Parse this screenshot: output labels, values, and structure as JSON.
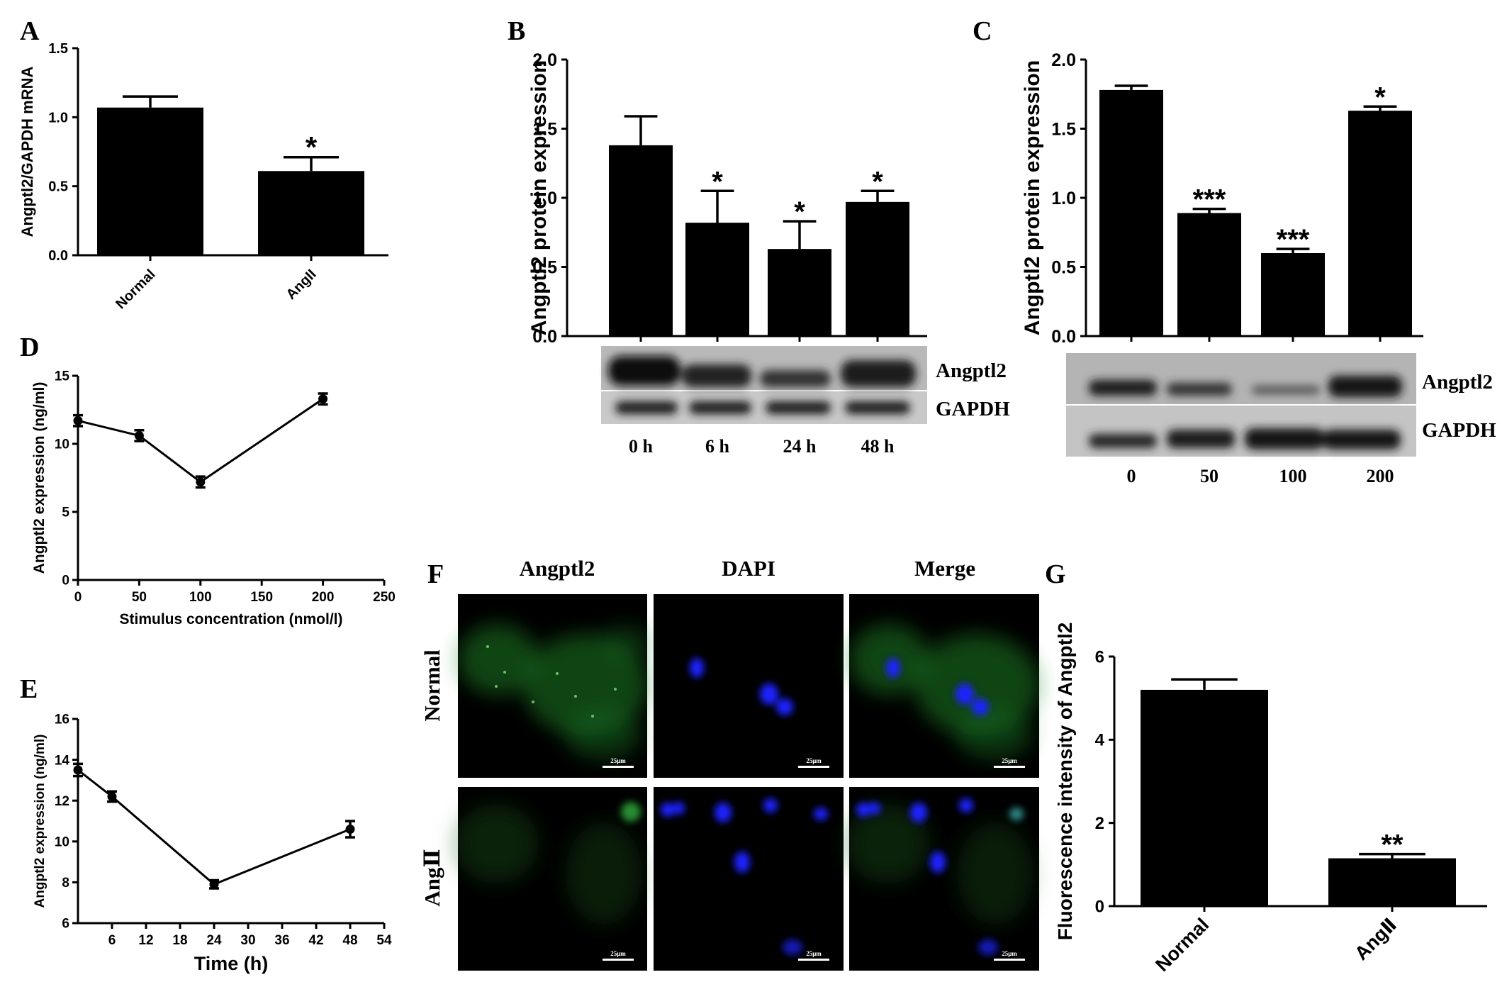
{
  "panel_letters": [
    "A",
    "B",
    "C",
    "D",
    "E",
    "F",
    "G"
  ],
  "colors": {
    "bar": "#000000",
    "green_channel": "#22a030",
    "blue_channel": "#1a22ff",
    "scale_bar": "#ffffff"
  },
  "chart_data": [
    {
      "panel": "A",
      "type": "bar",
      "categories": [
        "Normal",
        "AngII"
      ],
      "values": [
        1.07,
        0.61
      ],
      "errors": [
        0.08,
        0.1
      ],
      "significance": [
        "",
        "*"
      ],
      "ylabel": "Angptl2/GAPDH mRNA",
      "ylim": [
        0,
        1.5
      ],
      "yticks": [
        "0.0",
        "0.5",
        "1.0",
        "1.5"
      ]
    },
    {
      "panel": "B",
      "type": "bar",
      "categories": [
        "0 h",
        "6 h",
        "24 h",
        "48 h"
      ],
      "values": [
        1.38,
        0.82,
        0.63,
        0.97
      ],
      "errors": [
        0.21,
        0.23,
        0.2,
        0.08
      ],
      "significance": [
        "",
        "*",
        "*",
        "*"
      ],
      "ylabel": "Angptl2 protein expression",
      "ylim": [
        0,
        2.0
      ],
      "yticks": [
        "0.0",
        "0.5",
        "1.0",
        "1.5",
        "2.0"
      ],
      "blot_labels": [
        "Angptl2",
        "GAPDH"
      ]
    },
    {
      "panel": "C",
      "type": "bar",
      "categories": [
        "0",
        "50",
        "100",
        "200"
      ],
      "values": [
        1.78,
        0.89,
        0.6,
        1.63
      ],
      "errors": [
        0.03,
        0.03,
        0.03,
        0.03
      ],
      "significance": [
        "",
        "***",
        "***",
        "*"
      ],
      "ylabel": "Angptl2 protein expression",
      "ylim": [
        0,
        2.0
      ],
      "yticks": [
        "0.0",
        "0.5",
        "1.0",
        "1.5",
        "2.0"
      ],
      "blot_labels": [
        "Angptl2",
        "GAPDH"
      ]
    },
    {
      "panel": "D",
      "type": "line",
      "x": [
        0,
        50,
        100,
        200
      ],
      "y": [
        11.7,
        10.6,
        7.2,
        13.3
      ],
      "errors": [
        0.4,
        0.4,
        0.4,
        0.4
      ],
      "xlabel": "Stimulus concentration (nmol/l)",
      "ylabel": "Angptl2 expression (ng/ml)",
      "xlim": [
        0,
        250
      ],
      "ylim": [
        0,
        15
      ],
      "xticks": [
        "0",
        "50",
        "100",
        "150",
        "200",
        "250"
      ],
      "yticks": [
        "0",
        "5",
        "10",
        "15"
      ]
    },
    {
      "panel": "E",
      "type": "line",
      "x": [
        0,
        6,
        24,
        48
      ],
      "y": [
        13.5,
        12.2,
        7.9,
        10.6
      ],
      "errors": [
        0.3,
        0.25,
        0.2,
        0.4
      ],
      "xlabel": "Time (h)",
      "ylabel": "Angptl2 expression (ng/ml)",
      "xlim": [
        0,
        54
      ],
      "ylim": [
        6,
        16
      ],
      "xticks": [
        "6",
        "12",
        "18",
        "24",
        "30",
        "36",
        "42",
        "48",
        "54"
      ],
      "yticks": [
        "6",
        "8",
        "10",
        "12",
        "14",
        "16"
      ]
    },
    {
      "panel": "G",
      "type": "bar",
      "categories": [
        "Normal",
        "AngⅡ"
      ],
      "values": [
        5.2,
        1.15
      ],
      "errors": [
        0.25,
        0.1
      ],
      "significance": [
        "",
        "**"
      ],
      "ylabel": "Fluorescence intensity of Angptl2",
      "ylim": [
        0,
        6
      ],
      "yticks": [
        "0",
        "2",
        "4",
        "6"
      ]
    }
  ],
  "immunofluorescence": {
    "panel": "F",
    "column_titles": [
      "Angptl2",
      "DAPI",
      "Merge"
    ],
    "row_labels": [
      "Normal",
      "AngⅡ"
    ],
    "scale_bar_label": "25μm"
  }
}
